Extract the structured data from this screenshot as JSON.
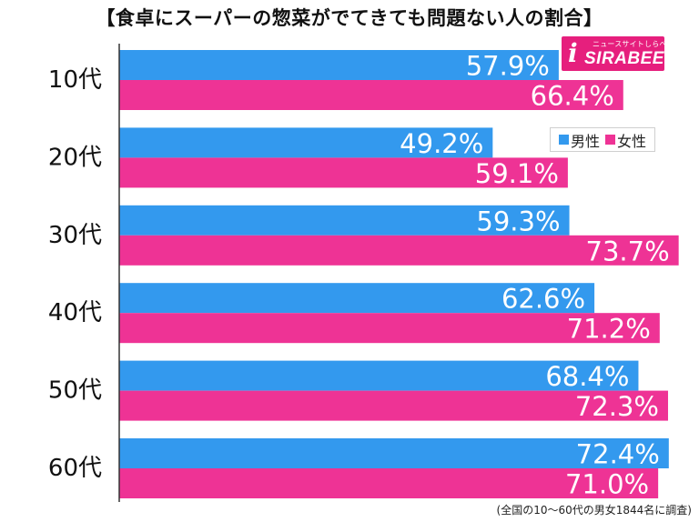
{
  "title": "【食卓にスーパーの惣菜がでてきても問題ない人の割合】",
  "logo": {
    "text": "SIRABEE",
    "tagline": "ニュースサイトしらべぇ",
    "color": "#e61f7d"
  },
  "note": "(全国の10〜60代の男女1844名に調査)",
  "chart_data": {
    "type": "bar",
    "orientation": "horizontal",
    "categories": [
      "10代",
      "20代",
      "30代",
      "40代",
      "50代",
      "60代"
    ],
    "series": [
      {
        "name": "男性",
        "color": "#3399ee",
        "values": [
          57.9,
          49.2,
          59.3,
          62.6,
          68.4,
          72.4
        ],
        "labels": [
          "57.9%",
          "49.2%",
          "59.3%",
          "62.6%",
          "68.4%",
          "72.4%"
        ]
      },
      {
        "name": "女性",
        "color": "#ee3395",
        "values": [
          66.4,
          59.1,
          73.7,
          71.2,
          72.3,
          71.0
        ],
        "labels": [
          "66.4%",
          "59.1%",
          "73.7%",
          "71.2%",
          "72.3%",
          "71.0%"
        ]
      }
    ],
    "xlim": [
      0,
      80
    ],
    "grid": false,
    "legend_position": "right"
  }
}
